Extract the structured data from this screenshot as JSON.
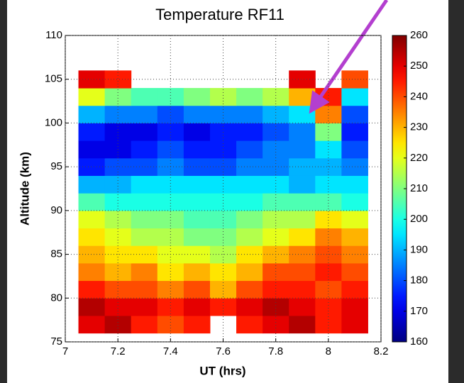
{
  "chart_data": {
    "type": "heatmap",
    "title": "Temperature RF11",
    "xlabel": "UT (hrs)",
    "ylabel": "Altitude (km)",
    "xlim": [
      7,
      8.2
    ],
    "xticks": [
      7,
      7.2,
      7.4,
      7.6,
      7.8,
      8,
      8.2
    ],
    "ylim": [
      75,
      110
    ],
    "yticks": [
      75,
      80,
      85,
      90,
      95,
      100,
      105,
      110
    ],
    "clim": [
      160,
      260
    ],
    "cticks": [
      160,
      170,
      180,
      190,
      200,
      210,
      220,
      230,
      240,
      250,
      260
    ],
    "colormap": "jet",
    "grid": true,
    "x": [
      7.1,
      7.2,
      7.3,
      7.4,
      7.5,
      7.6,
      7.7,
      7.8,
      7.9,
      8.0,
      8.1
    ],
    "y": [
      77,
      79,
      81,
      83,
      85,
      87,
      89,
      91,
      93,
      95,
      97,
      99,
      101,
      103,
      105
    ],
    "z": [
      [
        250,
        255,
        245,
        240,
        245,
        null,
        245,
        250,
        255,
        245,
        250
      ],
      [
        255,
        250,
        250,
        245,
        250,
        245,
        250,
        255,
        250,
        245,
        250
      ],
      [
        245,
        240,
        240,
        235,
        240,
        230,
        240,
        245,
        245,
        240,
        245
      ],
      [
        235,
        230,
        235,
        225,
        230,
        225,
        230,
        240,
        240,
        245,
        240
      ],
      [
        230,
        225,
        225,
        220,
        220,
        215,
        225,
        230,
        235,
        240,
        235
      ],
      [
        225,
        220,
        215,
        215,
        210,
        210,
        215,
        220,
        225,
        235,
        230
      ],
      [
        220,
        215,
        210,
        210,
        205,
        205,
        210,
        215,
        215,
        225,
        220
      ],
      [
        205,
        200,
        200,
        200,
        200,
        200,
        200,
        205,
        205,
        205,
        200
      ],
      [
        190,
        190,
        195,
        195,
        195,
        195,
        195,
        195,
        190,
        195,
        195
      ],
      [
        175,
        180,
        180,
        185,
        180,
        180,
        185,
        185,
        190,
        190,
        185
      ],
      [
        170,
        170,
        175,
        180,
        175,
        175,
        180,
        185,
        185,
        195,
        180
      ],
      [
        175,
        170,
        170,
        175,
        170,
        175,
        175,
        180,
        185,
        210,
        175
      ],
      [
        190,
        185,
        185,
        180,
        185,
        185,
        185,
        190,
        195,
        235,
        180
      ],
      [
        220,
        210,
        205,
        205,
        210,
        215,
        210,
        215,
        230,
        245,
        195
      ],
      [
        250,
        245,
        null,
        null,
        null,
        null,
        null,
        null,
        250,
        null,
        240
      ]
    ]
  }
}
